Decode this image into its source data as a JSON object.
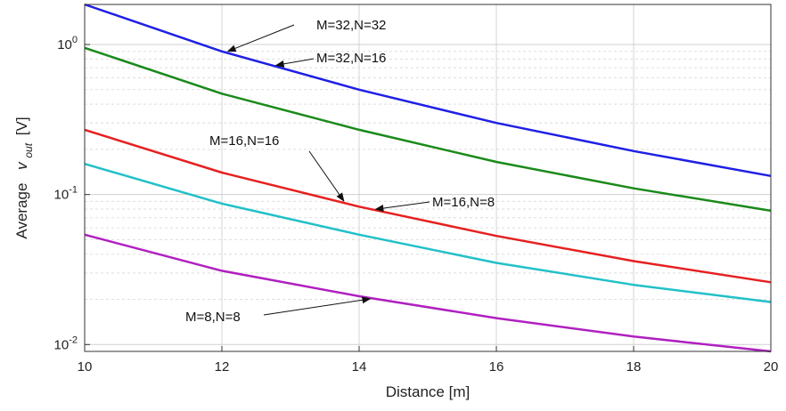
{
  "chart_data": {
    "type": "line",
    "title": "",
    "xlabel": "Distance [m]",
    "ylabel": {
      "prefix": "Average",
      "var": "v",
      "sub": "out",
      "unit": "[V]"
    },
    "xlim": [
      10,
      20
    ],
    "ylim": [
      0.009,
      1.85
    ],
    "yscale": "log",
    "grid": true,
    "legend": "none",
    "x_ticks": [
      "10",
      "12",
      "14",
      "16",
      "18",
      "20"
    ],
    "y_ticks": [
      {
        "base": "10",
        "exp": "-2"
      },
      {
        "base": "10",
        "exp": "-1"
      },
      {
        "base": "10",
        "exp": "0"
      }
    ],
    "x": [
      10,
      12,
      14,
      16,
      18,
      20
    ],
    "series": [
      {
        "name": "M=32,N=32",
        "color": "#1f1fe6",
        "values": [
          1.85,
          0.9,
          0.5,
          0.3,
          0.195,
          0.133
        ]
      },
      {
        "name": "M=32,N=16",
        "color": "#1a8a1a",
        "values": [
          0.95,
          0.47,
          0.27,
          0.165,
          0.11,
          0.078
        ]
      },
      {
        "name": "M=16,N=16",
        "color": "#e62020",
        "values": [
          0.27,
          0.14,
          0.083,
          0.053,
          0.036,
          0.026
        ]
      },
      {
        "name": "M=16,N=8",
        "color": "#22c0c8",
        "values": [
          0.16,
          0.087,
          0.054,
          0.035,
          0.025,
          0.0192
        ]
      },
      {
        "name": "M=8,N=8",
        "color": "#b020c0",
        "values": [
          0.054,
          0.031,
          0.021,
          0.015,
          0.0113,
          0.0088
        ]
      }
    ],
    "annotations": [
      {
        "text": "M=32,N=32",
        "series": "M=32,N=32",
        "at_x": 12.05
      },
      {
        "text": "M=32,N=16",
        "series": "M=32,N=32",
        "at_x": 12.75
      },
      {
        "text": "M=16,N=16",
        "series": "M=16,N=16",
        "at_x": 13.8
      },
      {
        "text": "M=16,N=8",
        "series": "M=16,N=16",
        "at_x": 14.2
      },
      {
        "text": "M=8,N=8",
        "series": "M=8,N=8",
        "at_x": 14.2
      }
    ]
  }
}
